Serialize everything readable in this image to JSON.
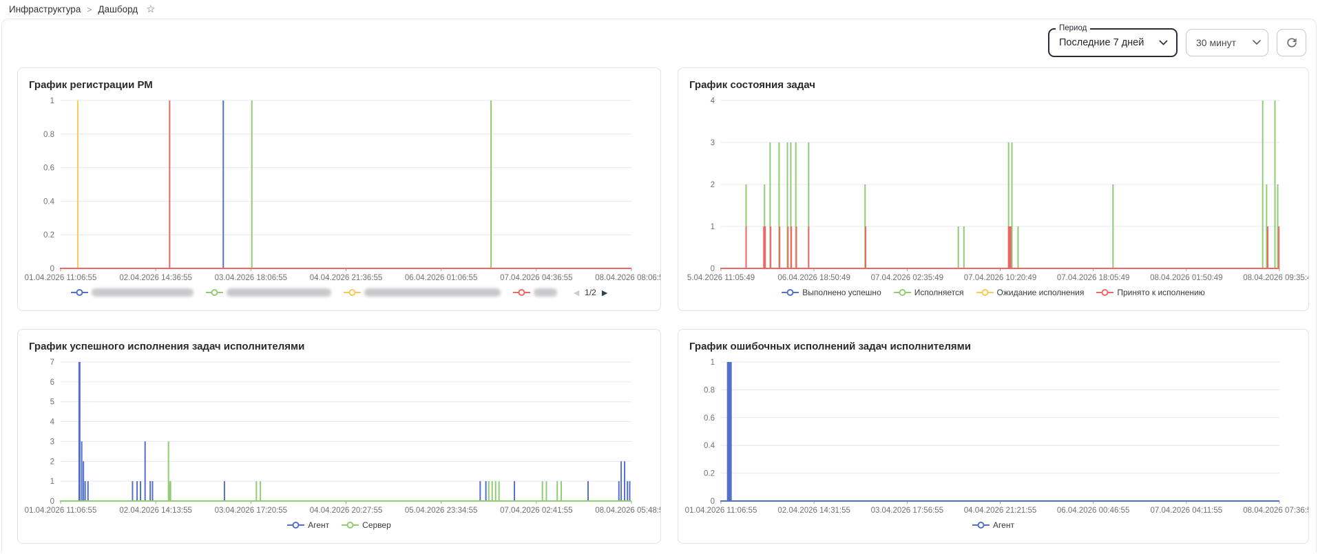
{
  "breadcrumb": {
    "items": [
      {
        "label": "Инфраструктура"
      },
      {
        "label": "Дашборд"
      }
    ],
    "separator": ">",
    "favorite_icon": "star-outline"
  },
  "controls": {
    "period": {
      "label": "Период",
      "value": "Последние 7 дней"
    },
    "interval": {
      "value": "30 минут"
    },
    "refresh_icon": "refresh"
  },
  "theme": {
    "palette": {
      "blue": "#5470c6",
      "green": "#91cc75",
      "yellow": "#fac858",
      "red": "#ee6666"
    },
    "grid_line": "#e2e8f3",
    "axis_label": "#6e7079",
    "card_border": "#e2e2e2"
  },
  "chart_data": [
    {
      "type": "line",
      "title": "График регистрации РМ",
      "y_max": 1,
      "y_ticks": [
        0,
        0.2,
        0.4,
        0.6,
        0.8,
        1
      ],
      "x_labels": [
        "01.04.2026 11:06:55",
        "02.04.2026 14:36:55",
        "03.04.2026 18:06:55",
        "04.04.2026 21:36:55",
        "06.04.2026 01:06:55",
        "07.04.2026 04:36:55",
        "08.04.2026 08:06:55"
      ],
      "legend": [
        {
          "color": "#5470c6",
          "masked": true,
          "masked_width": 148
        },
        {
          "color": "#91cc75",
          "masked": true,
          "masked_width": 152
        },
        {
          "color": "#fac858",
          "masked": true,
          "masked_width": 198
        },
        {
          "color": "#ee6666",
          "masked": true,
          "masked_width": 34
        }
      ],
      "pagination": {
        "label": "1/2",
        "prev_enabled": false,
        "next_enabled": true
      },
      "series": [
        {
          "color": "#5470c6",
          "spikes": [
            [
              0.285,
              1
            ]
          ]
        },
        {
          "color": "#91cc75",
          "spikes": [
            [
              0.335,
              1
            ],
            [
              0.754,
              1
            ]
          ]
        },
        {
          "color": "#fac858",
          "spikes": [
            [
              0.03,
              1
            ]
          ]
        },
        {
          "color": "#ee6666",
          "spikes": [
            [
              0.191,
              1
            ]
          ],
          "baseline": true
        }
      ]
    },
    {
      "type": "line",
      "title": "График состояния задач",
      "y_max": 4,
      "y_ticks": [
        0,
        1,
        2,
        3,
        4
      ],
      "x_labels": [
        "5.04.2026 11:05:49",
        "06.04.2026 18:50:49",
        "07.04.2026 02:35:49",
        "07.04.2026 10:20:49",
        "07.04.2026 18:05:49",
        "08.04.2026 01:50:49",
        "08.04.2026 09:35:49"
      ],
      "legend": [
        {
          "label": "Выполнено успешно",
          "color": "#5470c6"
        },
        {
          "label": "Исполняется",
          "color": "#91cc75"
        },
        {
          "label": "Ожидание исполнения",
          "color": "#fac858"
        },
        {
          "label": "Принято к исполнению",
          "color": "#ee6666"
        }
      ],
      "series": [
        {
          "name": "Выполнено успешно",
          "color": "#5470c6",
          "spikes": []
        },
        {
          "name": "Исполняется",
          "color": "#91cc75",
          "spikes": [
            [
              0.045,
              2
            ],
            [
              0.078,
              2
            ],
            [
              0.088,
              3
            ],
            [
              0.104,
              3
            ],
            [
              0.119,
              3
            ],
            [
              0.125,
              3
            ],
            [
              0.134,
              3
            ],
            [
              0.157,
              3
            ],
            [
              0.258,
              2
            ],
            [
              0.425,
              1
            ],
            [
              0.435,
              1
            ],
            [
              0.515,
              3
            ],
            [
              0.521,
              3
            ],
            [
              0.532,
              1
            ],
            [
              0.702,
              2
            ],
            [
              0.97,
              4
            ],
            [
              0.977,
              2
            ],
            [
              0.992,
              4
            ],
            [
              0.997,
              2
            ]
          ]
        },
        {
          "name": "Ожидание исполнения",
          "color": "#fac858",
          "spikes": []
        },
        {
          "name": "Принято к исполнению",
          "color": "#ee6666",
          "spikes": [
            [
              0.045,
              1
            ],
            [
              0.078,
              1,
              4
            ],
            [
              0.089,
              1
            ],
            [
              0.105,
              1
            ],
            [
              0.12,
              1
            ],
            [
              0.126,
              1
            ],
            [
              0.135,
              1
            ],
            [
              0.157,
              1
            ],
            [
              0.259,
              1
            ],
            [
              0.517,
              1,
              5
            ],
            [
              0.979,
              1
            ],
            [
              0.999,
              1
            ]
          ],
          "baseline": true
        }
      ]
    },
    {
      "type": "line",
      "title": "График успешного исполнения задач исполнителями",
      "y_max": 7,
      "y_ticks": [
        0,
        1,
        2,
        3,
        4,
        5,
        6,
        7
      ],
      "x_labels": [
        "01.04.2026 11:06:55",
        "02.04.2026 14:13:55",
        "03.04.2026 17:20:55",
        "04.04.2026 20:27:55",
        "05.04.2026 23:34:55",
        "07.04.2026 02:41:55",
        "08.04.2026 05:48:55"
      ],
      "legend": [
        {
          "label": "Агент",
          "color": "#5470c6"
        },
        {
          "label": "Сервер",
          "color": "#91cc75"
        }
      ],
      "series": [
        {
          "name": "Агент",
          "color": "#5470c6",
          "spikes": [
            [
              0.033,
              7,
              3
            ],
            [
              0.037,
              3
            ],
            [
              0.04,
              2
            ],
            [
              0.043,
              1
            ],
            [
              0.048,
              1
            ],
            [
              0.126,
              1
            ],
            [
              0.134,
              1
            ],
            [
              0.14,
              1
            ],
            [
              0.148,
              3
            ],
            [
              0.157,
              1
            ],
            [
              0.161,
              1
            ],
            [
              0.287,
              1
            ],
            [
              0.735,
              1
            ],
            [
              0.745,
              1
            ],
            [
              0.795,
              1
            ],
            [
              0.924,
              1
            ],
            [
              0.978,
              1
            ],
            [
              0.982,
              2
            ],
            [
              0.988,
              2
            ],
            [
              0.993,
              1
            ],
            [
              0.997,
              1
            ]
          ]
        },
        {
          "name": "Сервер",
          "color": "#91cc75",
          "spikes": [
            [
              0.189,
              3
            ],
            [
              0.192,
              1,
              3
            ],
            [
              0.343,
              1
            ],
            [
              0.35,
              1
            ],
            [
              0.75,
              1
            ],
            [
              0.756,
              1
            ],
            [
              0.762,
              1
            ],
            [
              0.768,
              1
            ],
            [
              0.844,
              1
            ],
            [
              0.851,
              1
            ],
            [
              0.87,
              1
            ],
            [
              0.877,
              1
            ]
          ],
          "baseline": true
        }
      ]
    },
    {
      "type": "line",
      "title": "График ошибочных исполнений задач исполнителями",
      "y_max": 1,
      "y_ticks": [
        0,
        0.2,
        0.4,
        0.6,
        0.8,
        1
      ],
      "x_labels": [
        "01.04.2026 11:06:55",
        "02.04.2026 14:31:55",
        "03.04.2026 17:56:55",
        "04.04.2026 21:21:55",
        "06.04.2026 00:46:55",
        "07.04.2026 04:11:55",
        "08.04.2026 07:36:55"
      ],
      "legend": [
        {
          "label": "Агент",
          "color": "#5470c6"
        }
      ],
      "series": [
        {
          "name": "Агент",
          "color": "#5470c6",
          "spikes": [
            [
              0.015,
              1,
              7
            ]
          ],
          "baseline": true
        }
      ]
    }
  ]
}
